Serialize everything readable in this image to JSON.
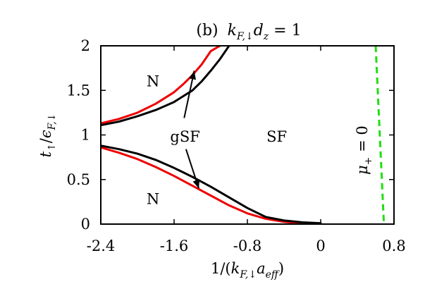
{
  "chart_data": {
    "type": "line",
    "title_prefix": "(b)",
    "title_expr": "k_F,↓ d_z = 1",
    "xlabel_expr": "1/(k_F,↓ a_eff)",
    "ylabel_expr": "t_↑ / ϵ_F,↓",
    "xlim": [
      -2.4,
      0.8
    ],
    "ylim": [
      0,
      2
    ],
    "xticks": [
      "-2.4",
      "-1.6",
      "-0.8",
      "0",
      "0.8"
    ],
    "xtick_values": [
      -2.4,
      -1.6,
      -0.8,
      0,
      0.8
    ],
    "yticks": [
      "0",
      "0.5",
      "1",
      "1.5",
      "2"
    ],
    "ytick_values": [
      0,
      0.5,
      1,
      1.5,
      2
    ],
    "grid": false,
    "legend": "none",
    "series": [
      {
        "id": "upper-red",
        "color": "#ee0000",
        "style": "solid",
        "x": [
          -2.4,
          -2.2,
          -2.0,
          -1.8,
          -1.6,
          -1.5,
          -1.4,
          -1.3,
          -1.2,
          -1.1
        ],
        "y": [
          1.13,
          1.18,
          1.25,
          1.35,
          1.48,
          1.57,
          1.67,
          1.79,
          1.94,
          2.0
        ]
      },
      {
        "id": "upper-black",
        "color": "#000000",
        "style": "solid",
        "x": [
          -2.4,
          -2.2,
          -2.0,
          -1.8,
          -1.6,
          -1.4,
          -1.3,
          -1.2,
          -1.1,
          -1.0
        ],
        "y": [
          1.11,
          1.15,
          1.21,
          1.28,
          1.37,
          1.5,
          1.6,
          1.72,
          1.85,
          2.0
        ]
      },
      {
        "id": "lower-red",
        "color": "#ee0000",
        "style": "solid",
        "x": [
          -2.4,
          -2.2,
          -2.0,
          -1.8,
          -1.6,
          -1.4,
          -1.2,
          -1.0,
          -0.8,
          -0.6,
          -0.4,
          -0.2,
          0.0
        ],
        "y": [
          0.86,
          0.8,
          0.73,
          0.64,
          0.54,
          0.43,
          0.32,
          0.21,
          0.12,
          0.06,
          0.025,
          0.008,
          0.0
        ]
      },
      {
        "id": "lower-black",
        "color": "#000000",
        "style": "solid",
        "x": [
          -2.4,
          -2.2,
          -2.0,
          -1.8,
          -1.6,
          -1.4,
          -1.2,
          -1.0,
          -0.8,
          -0.6,
          -0.4,
          -0.2,
          0.0
        ],
        "y": [
          0.88,
          0.84,
          0.79,
          0.72,
          0.63,
          0.53,
          0.42,
          0.3,
          0.18,
          0.08,
          0.04,
          0.02,
          0.01
        ]
      },
      {
        "id": "mu-plus-zero",
        "color": "#22dd11",
        "style": "dashed",
        "x": [
          0.6,
          0.69
        ],
        "y": [
          2.0,
          0.0
        ]
      }
    ],
    "annotations": {
      "n_upper": "N",
      "n_lower": "N",
      "gsf": "gSF",
      "sf": "SF",
      "mu_label_expr": "μ_+ = 0"
    },
    "arrows": [
      {
        "from_x": -1.49,
        "from_y": 1.19,
        "to_x": -1.38,
        "to_y": 1.72
      },
      {
        "from_x": -1.47,
        "from_y": 0.84,
        "to_x": -1.33,
        "to_y": 0.4
      }
    ],
    "annotation_positions": {
      "n_upper": [
        -1.83,
        1.6
      ],
      "n_lower": [
        -1.83,
        0.28
      ],
      "gsf": [
        -1.48,
        0.98
      ],
      "sf": [
        -0.48,
        0.98
      ]
    }
  }
}
